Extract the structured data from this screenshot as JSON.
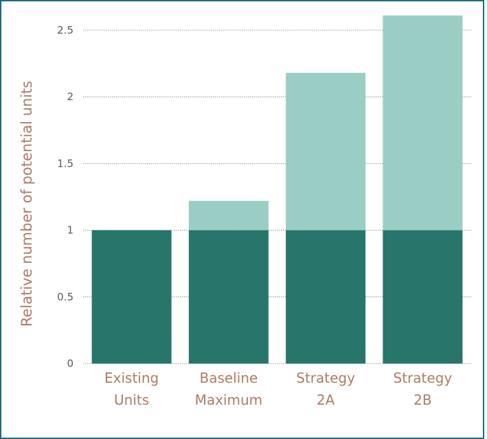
{
  "chart_data": {
    "type": "bar",
    "stacked": true,
    "categories": [
      [
        "Existing",
        "Units"
      ],
      [
        "Baseline",
        "Maximum"
      ],
      [
        "Strategy",
        "2A"
      ],
      [
        "Strategy",
        "2B"
      ]
    ],
    "series": [
      {
        "values": [
          1,
          1,
          1,
          1
        ],
        "color": "#27756b"
      },
      {
        "values": [
          0,
          0.22,
          1.18,
          1.61
        ],
        "color": "#9acdc4"
      }
    ],
    "title": "",
    "xlabel": "",
    "ylabel": "Relative number of potential units",
    "ylim": [
      0,
      2.5
    ],
    "yticks": [
      "0",
      "0.5",
      "1",
      "1.5",
      "2",
      "2.5"
    ],
    "grid": true,
    "label_color": "#b07a68"
  }
}
